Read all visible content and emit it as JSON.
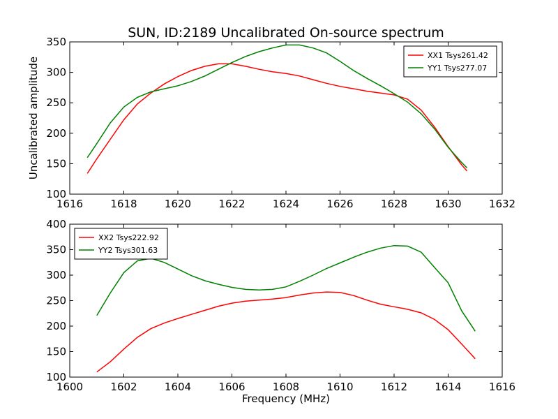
{
  "title": "SUN, ID:2189 Uncalibrated On-source spectrum",
  "chart_data": [
    {
      "type": "line",
      "ylabel": "Uncalibrated amplitude",
      "xlabel": "",
      "xlim": [
        1616,
        1632
      ],
      "ylim": [
        100,
        350
      ],
      "xticks": [
        1616,
        1618,
        1620,
        1622,
        1624,
        1626,
        1628,
        1630,
        1632
      ],
      "yticks": [
        100,
        150,
        200,
        250,
        300,
        350
      ],
      "legend_position": "top-right",
      "series": [
        {
          "name": "XX1 Tsys261.42",
          "color": "#ff0000",
          "x": [
            1616.65,
            1617.0,
            1617.5,
            1618.0,
            1618.5,
            1619.0,
            1619.5,
            1620.0,
            1620.5,
            1621.0,
            1621.5,
            1622.0,
            1622.5,
            1623.0,
            1623.5,
            1624.0,
            1624.5,
            1625.0,
            1625.5,
            1626.0,
            1626.5,
            1627.0,
            1627.5,
            1628.0,
            1628.5,
            1629.0,
            1629.5,
            1630.0,
            1630.5,
            1630.7
          ],
          "y": [
            134,
            158,
            190,
            222,
            248,
            266,
            281,
            293,
            303,
            310,
            314,
            314,
            310,
            305,
            301,
            298,
            294,
            288,
            282,
            277,
            273,
            269,
            266,
            263,
            256,
            238,
            210,
            178,
            148,
            138
          ]
        },
        {
          "name": "YY1 Tsys277.07",
          "color": "#008000",
          "x": [
            1616.65,
            1617.0,
            1617.5,
            1618.0,
            1618.5,
            1619.0,
            1619.5,
            1620.0,
            1620.5,
            1621.0,
            1621.5,
            1622.0,
            1622.5,
            1623.0,
            1623.5,
            1624.0,
            1624.5,
            1625.0,
            1625.5,
            1626.0,
            1626.5,
            1627.0,
            1627.5,
            1628.0,
            1628.5,
            1629.0,
            1629.5,
            1630.0,
            1630.5,
            1630.7
          ],
          "y": [
            160,
            183,
            217,
            243,
            259,
            268,
            273,
            278,
            285,
            294,
            305,
            316,
            326,
            334,
            340,
            345,
            345,
            340,
            332,
            318,
            303,
            290,
            278,
            265,
            251,
            232,
            207,
            177,
            152,
            143
          ]
        }
      ]
    },
    {
      "type": "line",
      "ylabel": "",
      "xlabel": "Frequency (MHz)",
      "xlim": [
        1600,
        1616
      ],
      "ylim": [
        100,
        400
      ],
      "xticks": [
        1600,
        1602,
        1604,
        1606,
        1608,
        1610,
        1612,
        1614,
        1616
      ],
      "yticks": [
        100,
        150,
        200,
        250,
        300,
        350,
        400
      ],
      "legend_position": "top-left",
      "series": [
        {
          "name": "XX2 Tsys222.92",
          "color": "#ff0000",
          "x": [
            1601.0,
            1601.5,
            1602.0,
            1602.5,
            1603.0,
            1603.5,
            1604.0,
            1604.5,
            1605.0,
            1605.5,
            1606.0,
            1606.5,
            1607.0,
            1607.5,
            1608.0,
            1608.5,
            1609.0,
            1609.5,
            1610.0,
            1610.5,
            1611.0,
            1611.5,
            1612.0,
            1612.5,
            1613.0,
            1613.5,
            1614.0,
            1614.5,
            1615.0
          ],
          "y": [
            110,
            130,
            155,
            178,
            195,
            206,
            215,
            223,
            231,
            239,
            245,
            249,
            251,
            253,
            256,
            261,
            265,
            267,
            266,
            260,
            251,
            243,
            238,
            233,
            226,
            213,
            193,
            165,
            136
          ]
        },
        {
          "name": "YY2 Tsys301.63",
          "color": "#008000",
          "x": [
            1601.0,
            1601.5,
            1602.0,
            1602.5,
            1603.0,
            1603.5,
            1604.0,
            1604.5,
            1605.0,
            1605.5,
            1606.0,
            1606.5,
            1607.0,
            1607.5,
            1608.0,
            1608.5,
            1609.0,
            1609.5,
            1610.0,
            1610.5,
            1611.0,
            1611.5,
            1612.0,
            1612.5,
            1613.0,
            1613.5,
            1614.0,
            1614.5,
            1615.0
          ],
          "y": [
            221,
            265,
            305,
            328,
            333,
            325,
            312,
            299,
            289,
            282,
            276,
            272,
            271,
            272,
            277,
            288,
            300,
            313,
            324,
            335,
            345,
            353,
            358,
            357,
            345,
            315,
            285,
            230,
            190
          ]
        }
      ]
    }
  ]
}
